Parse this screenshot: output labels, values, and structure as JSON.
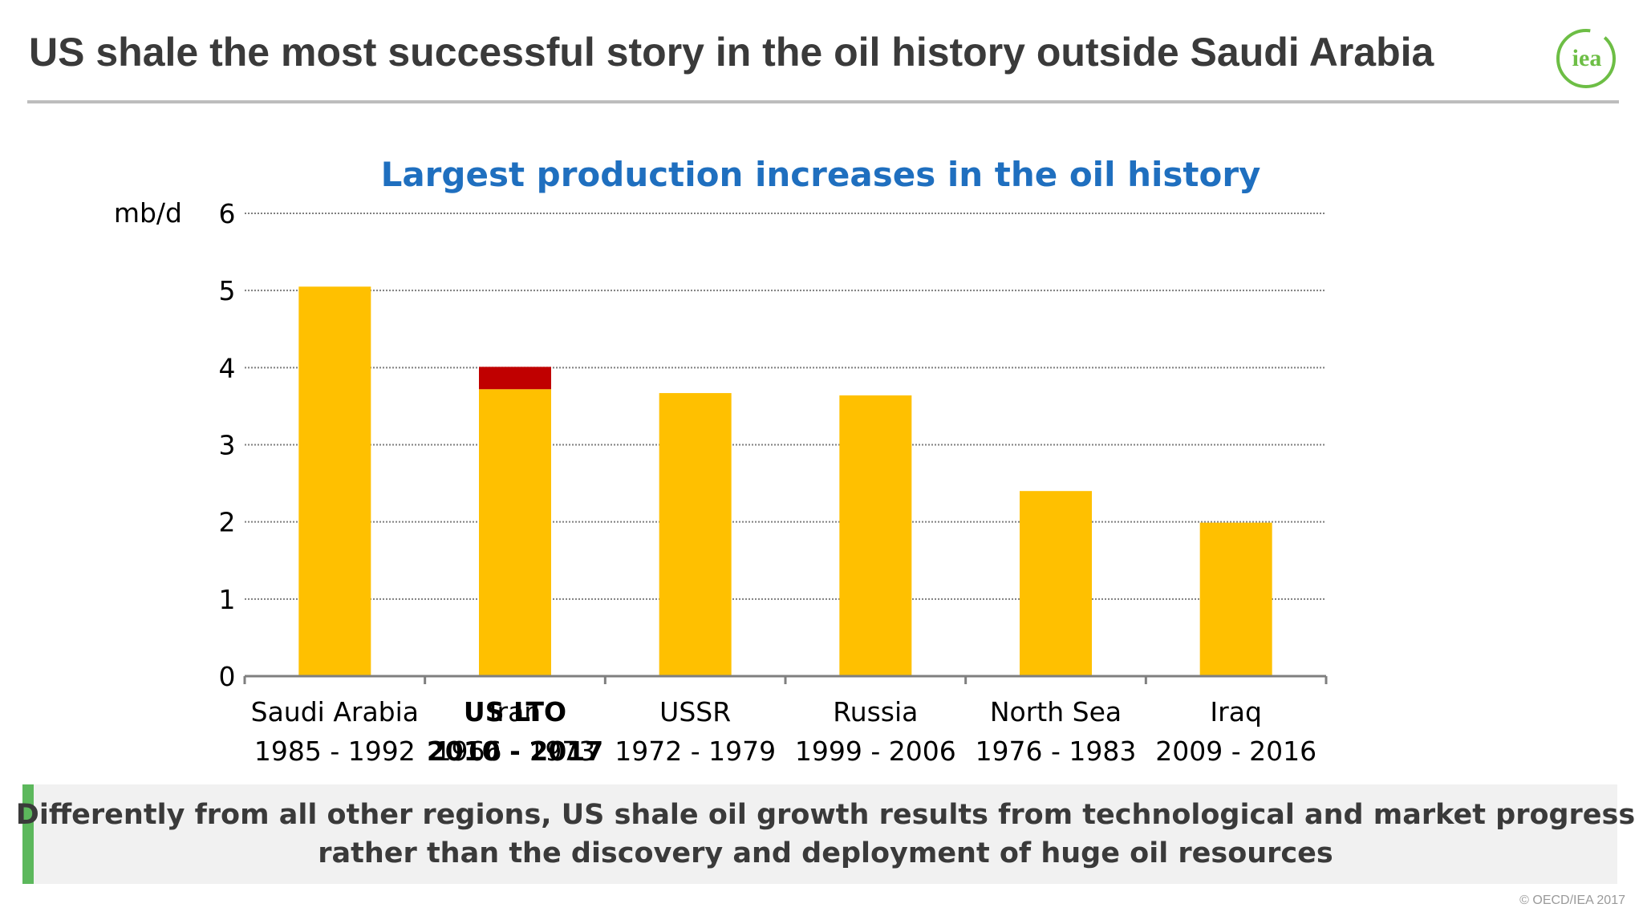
{
  "slide": {
    "title": "US shale the most successful story in the oil history outside Saudi Arabia",
    "logo_text": "iea",
    "callout_lines": [
      "Differently from all other regions, US shale oil growth results from technological and market progress",
      "rather than the discovery and deployment of huge oil resources"
    ],
    "copyright": "© OECD/IEA 2017"
  },
  "colors": {
    "bar": "#FFC000",
    "bar_highlight": "#C00000",
    "title_chart": "#1F6FBF",
    "accent_green": "#5CB85C",
    "logo_green": "#6DBE45"
  },
  "chart_data": {
    "type": "bar",
    "title": "Largest production increases in the oil history",
    "ylabel": "mb/d",
    "ylim": [
      0,
      6
    ],
    "yticks": [
      0,
      1,
      2,
      3,
      4,
      5,
      6
    ],
    "grid": true,
    "categories": [
      {
        "name": "Saudi Arabia",
        "period": "1985 - 1992"
      },
      {
        "name": "Iran",
        "period": "1966 - 1973",
        "overlay_name": "US LTO",
        "overlay_period": "2010 - 2017"
      },
      {
        "name": "USSR",
        "period": "1972 - 1979"
      },
      {
        "name": "Russia",
        "period": "1999 - 2006"
      },
      {
        "name": "North Sea",
        "period": "1976 - 1983"
      },
      {
        "name": "Iraq",
        "period": "2009 - 2016"
      }
    ],
    "series": [
      {
        "values": [
          5.05,
          3.72,
          3.67,
          3.64,
          2.4,
          1.99
        ]
      },
      {
        "values": [
          0,
          0.29,
          0,
          0,
          0,
          0
        ]
      }
    ]
  }
}
